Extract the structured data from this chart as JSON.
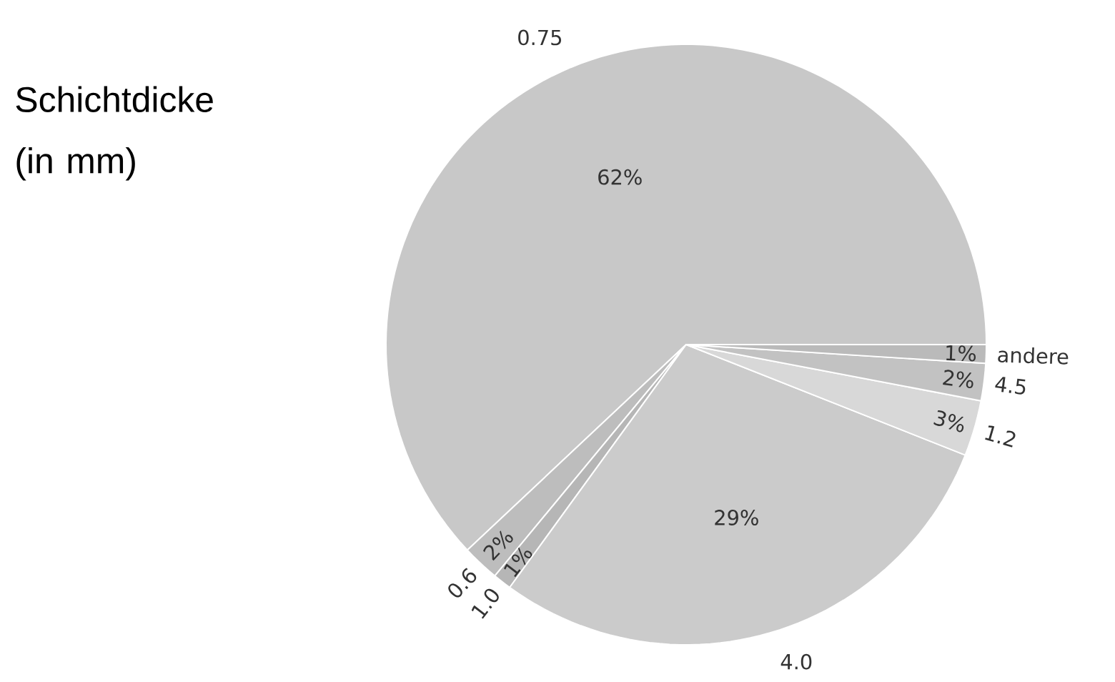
{
  "chart_data": {
    "type": "pie",
    "title": "Schichtdicke (in mm)",
    "categories": [
      "0.75",
      "0.6",
      "1.0",
      "4.0",
      "1.2",
      "4.5",
      "andere"
    ],
    "values": [
      62,
      2,
      1,
      29,
      3,
      2,
      1
    ],
    "value_labels": [
      "62%",
      "2%",
      "1%",
      "29%",
      "3%",
      "2%",
      "1%"
    ],
    "colors": [
      "#c8c8c8",
      "#bdbdbd",
      "#b6b6b6",
      "#cbcbcb",
      "#d8d8d8",
      "#c2c2c2",
      "#bababa"
    ]
  }
}
